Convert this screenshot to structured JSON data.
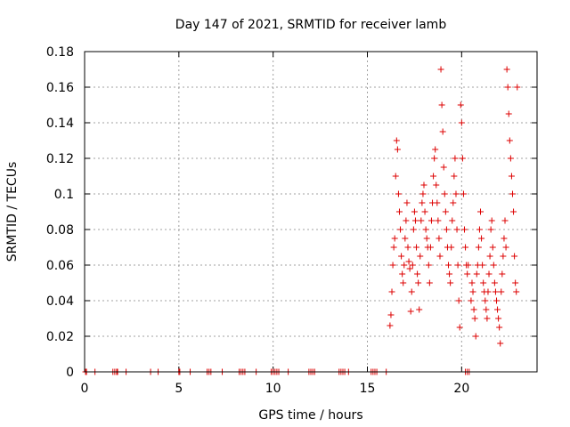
{
  "chart_data": {
    "type": "scatter",
    "title": "Day 147 of 2021, SRMTID for receiver lamb",
    "xlabel": "GPS time / hours",
    "ylabel": "SRMTID / TECUs",
    "xlim": [
      0,
      24
    ],
    "ylim": [
      0,
      0.18
    ],
    "x_ticks": [
      0,
      5,
      10,
      15,
      20
    ],
    "x_tick_labels": [
      "0",
      "5",
      "10",
      "15",
      "20"
    ],
    "y_ticks": [
      0,
      0.02,
      0.04,
      0.06,
      0.08,
      0.1,
      0.12,
      0.14,
      0.16,
      0.18
    ],
    "y_tick_labels": [
      "0",
      "0.02",
      "0.04",
      "0.06",
      "0.08",
      "0.1",
      "0.12",
      "0.14",
      "0.16",
      "0.18"
    ],
    "grid": true,
    "marker": "plus",
    "color": "#dd0000",
    "series": [
      {
        "name": "SRMTID",
        "points": [
          [
            0.05,
            0
          ],
          [
            0.1,
            0
          ],
          [
            0.55,
            0
          ],
          [
            1.5,
            0
          ],
          [
            1.6,
            0
          ],
          [
            1.7,
            0
          ],
          [
            1.75,
            0
          ],
          [
            2.2,
            0
          ],
          [
            3.5,
            0
          ],
          [
            3.9,
            0
          ],
          [
            5.0,
            0
          ],
          [
            5.05,
            0
          ],
          [
            5.6,
            0
          ],
          [
            6.5,
            0
          ],
          [
            6.6,
            0
          ],
          [
            6.7,
            0
          ],
          [
            7.3,
            0
          ],
          [
            8.2,
            0
          ],
          [
            8.3,
            0
          ],
          [
            8.4,
            0
          ],
          [
            8.5,
            0
          ],
          [
            9.1,
            0
          ],
          [
            9.9,
            0
          ],
          [
            10.0,
            0
          ],
          [
            10.1,
            0
          ],
          [
            10.2,
            0
          ],
          [
            10.3,
            0
          ],
          [
            10.8,
            0
          ],
          [
            11.9,
            0
          ],
          [
            12.0,
            0
          ],
          [
            12.1,
            0
          ],
          [
            12.2,
            0
          ],
          [
            13.5,
            0
          ],
          [
            13.6,
            0
          ],
          [
            13.7,
            0
          ],
          [
            13.8,
            0
          ],
          [
            14.0,
            0
          ],
          [
            15.2,
            0
          ],
          [
            15.3,
            0
          ],
          [
            15.4,
            0
          ],
          [
            15.5,
            0
          ],
          [
            16.0,
            0
          ],
          [
            20.2,
            0
          ],
          [
            20.3,
            0
          ],
          [
            20.4,
            0
          ],
          [
            16.2,
            0.026
          ],
          [
            16.25,
            0.032
          ],
          [
            16.3,
            0.045
          ],
          [
            16.35,
            0.06
          ],
          [
            16.4,
            0.07
          ],
          [
            16.45,
            0.075
          ],
          [
            16.5,
            0.11
          ],
          [
            16.55,
            0.13
          ],
          [
            16.6,
            0.125
          ],
          [
            16.65,
            0.1
          ],
          [
            16.7,
            0.09
          ],
          [
            16.75,
            0.08
          ],
          [
            16.8,
            0.065
          ],
          [
            16.85,
            0.055
          ],
          [
            16.9,
            0.05
          ],
          [
            16.95,
            0.06
          ],
          [
            17.0,
            0.075
          ],
          [
            17.05,
            0.085
          ],
          [
            17.1,
            0.095
          ],
          [
            17.15,
            0.07
          ],
          [
            17.2,
            0.062
          ],
          [
            17.25,
            0.058
          ],
          [
            17.3,
            0.034
          ],
          [
            17.35,
            0.045
          ],
          [
            17.4,
            0.06
          ],
          [
            17.45,
            0.08
          ],
          [
            17.5,
            0.09
          ],
          [
            17.55,
            0.085
          ],
          [
            17.6,
            0.07
          ],
          [
            17.65,
            0.055
          ],
          [
            17.7,
            0.05
          ],
          [
            17.75,
            0.035
          ],
          [
            17.8,
            0.065
          ],
          [
            17.85,
            0.085
          ],
          [
            17.9,
            0.095
          ],
          [
            17.95,
            0.1
          ],
          [
            18.0,
            0.105
          ],
          [
            18.05,
            0.09
          ],
          [
            18.1,
            0.08
          ],
          [
            18.15,
            0.075
          ],
          [
            18.2,
            0.07
          ],
          [
            18.25,
            0.06
          ],
          [
            18.3,
            0.05
          ],
          [
            18.35,
            0.07
          ],
          [
            18.4,
            0.085
          ],
          [
            18.45,
            0.095
          ],
          [
            18.5,
            0.11
          ],
          [
            18.55,
            0.12
          ],
          [
            18.6,
            0.125
          ],
          [
            18.65,
            0.105
          ],
          [
            18.7,
            0.095
          ],
          [
            18.75,
            0.085
          ],
          [
            18.8,
            0.075
          ],
          [
            18.85,
            0.065
          ],
          [
            18.9,
            0.17
          ],
          [
            18.95,
            0.15
          ],
          [
            19.0,
            0.135
          ],
          [
            19.05,
            0.115
          ],
          [
            19.1,
            0.1
          ],
          [
            19.15,
            0.09
          ],
          [
            19.2,
            0.08
          ],
          [
            19.25,
            0.07
          ],
          [
            19.3,
            0.06
          ],
          [
            19.35,
            0.055
          ],
          [
            19.4,
            0.05
          ],
          [
            19.45,
            0.07
          ],
          [
            19.5,
            0.085
          ],
          [
            19.55,
            0.095
          ],
          [
            19.6,
            0.11
          ],
          [
            19.65,
            0.12
          ],
          [
            19.7,
            0.1
          ],
          [
            19.75,
            0.08
          ],
          [
            19.8,
            0.06
          ],
          [
            19.85,
            0.04
          ],
          [
            19.9,
            0.025
          ],
          [
            19.95,
            0.15
          ],
          [
            20.0,
            0.14
          ],
          [
            20.05,
            0.12
          ],
          [
            20.1,
            0.1
          ],
          [
            20.15,
            0.08
          ],
          [
            20.2,
            0.07
          ],
          [
            20.25,
            0.06
          ],
          [
            20.3,
            0.055
          ],
          [
            20.35,
            0.06
          ],
          [
            20.5,
            0.04
          ],
          [
            20.55,
            0.05
          ],
          [
            20.6,
            0.045
          ],
          [
            20.65,
            0.035
          ],
          [
            20.7,
            0.03
          ],
          [
            20.75,
            0.02
          ],
          [
            20.8,
            0.055
          ],
          [
            20.85,
            0.06
          ],
          [
            20.9,
            0.07
          ],
          [
            20.95,
            0.08
          ],
          [
            21.0,
            0.09
          ],
          [
            21.05,
            0.075
          ],
          [
            21.1,
            0.06
          ],
          [
            21.15,
            0.05
          ],
          [
            21.2,
            0.045
          ],
          [
            21.25,
            0.04
          ],
          [
            21.3,
            0.035
          ],
          [
            21.35,
            0.03
          ],
          [
            21.4,
            0.045
          ],
          [
            21.45,
            0.055
          ],
          [
            21.5,
            0.065
          ],
          [
            21.55,
            0.08
          ],
          [
            21.6,
            0.085
          ],
          [
            21.65,
            0.07
          ],
          [
            21.7,
            0.06
          ],
          [
            21.75,
            0.05
          ],
          [
            21.8,
            0.045
          ],
          [
            21.85,
            0.04
          ],
          [
            21.9,
            0.035
          ],
          [
            21.95,
            0.03
          ],
          [
            22.0,
            0.025
          ],
          [
            22.05,
            0.016
          ],
          [
            22.1,
            0.045
          ],
          [
            22.15,
            0.055
          ],
          [
            22.2,
            0.065
          ],
          [
            22.25,
            0.075
          ],
          [
            22.3,
            0.085
          ],
          [
            22.35,
            0.07
          ],
          [
            22.4,
            0.17
          ],
          [
            22.45,
            0.16
          ],
          [
            22.5,
            0.145
          ],
          [
            22.55,
            0.13
          ],
          [
            22.6,
            0.12
          ],
          [
            22.65,
            0.11
          ],
          [
            22.7,
            0.1
          ],
          [
            22.75,
            0.09
          ],
          [
            22.8,
            0.065
          ],
          [
            22.85,
            0.05
          ],
          [
            22.9,
            0.045
          ],
          [
            22.95,
            0.16
          ]
        ]
      }
    ]
  }
}
